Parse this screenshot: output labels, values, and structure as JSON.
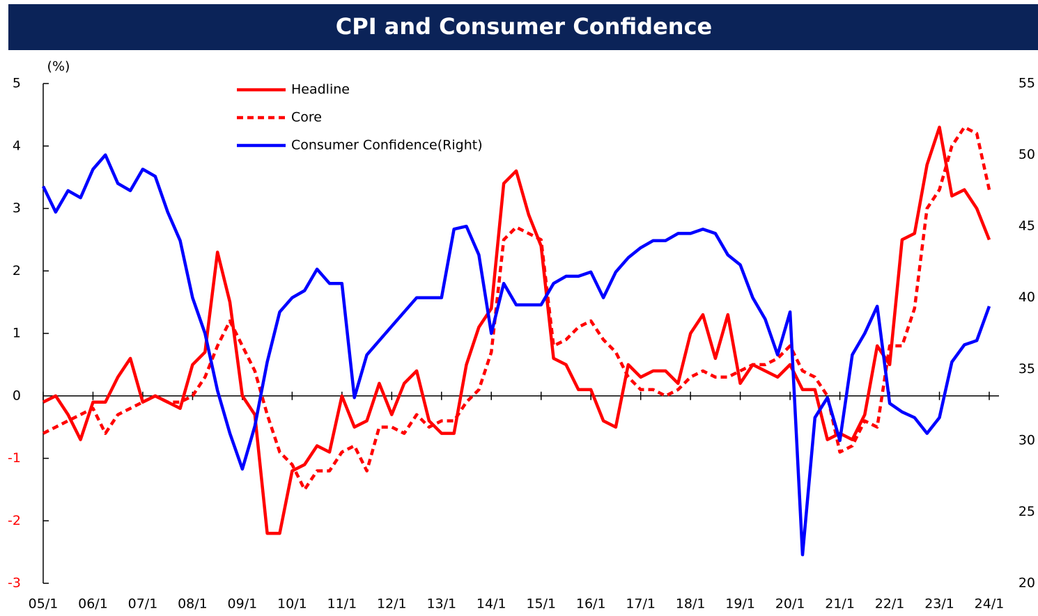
{
  "chart_data": {
    "type": "line",
    "title": "CPI and Consumer Confidence",
    "y_label": "(%)",
    "categories": [
      "05/1",
      null,
      null,
      null,
      "06/1",
      null,
      null,
      null,
      "07/1",
      null,
      null,
      null,
      "08/1",
      null,
      null,
      null,
      "09/1",
      null,
      null,
      null,
      "10/1",
      null,
      null,
      null,
      "11/1",
      null,
      null,
      null,
      "12/1",
      null,
      null,
      null,
      "13/1",
      null,
      null,
      null,
      "14/1",
      null,
      null,
      null,
      "15/1",
      null,
      null,
      null,
      "16/1",
      null,
      null,
      null,
      "17/1",
      null,
      null,
      null,
      "18/1",
      null,
      null,
      null,
      "19/1",
      null,
      null,
      null,
      "20/1",
      null,
      null,
      null,
      "21/1",
      null,
      null,
      null,
      "22/1",
      null,
      null,
      null,
      "23/1",
      null,
      null,
      null,
      "24/1"
    ],
    "series": [
      {
        "name": "Headline",
        "color": "#ff0000",
        "dash": false,
        "values": [
          -0.1,
          0.0,
          -0.3,
          -0.7,
          -0.1,
          -0.1,
          0.3,
          0.6,
          -0.1,
          0.0,
          -0.1,
          -0.2,
          0.5,
          0.7,
          2.3,
          1.5,
          0.0,
          -0.3,
          -2.2,
          -2.2,
          -1.2,
          -1.1,
          -0.8,
          -0.9,
          0.0,
          -0.5,
          -0.4,
          0.2,
          -0.3,
          0.2,
          0.4,
          -0.4,
          -0.6,
          -0.6,
          0.5,
          1.1,
          1.4,
          3.4,
          3.6,
          2.9,
          2.4,
          0.6,
          0.5,
          0.1,
          0.1,
          -0.4,
          -0.5,
          0.5,
          0.3,
          0.4,
          0.4,
          0.2,
          1.0,
          1.3,
          0.6,
          1.3,
          0.2,
          0.5,
          0.4,
          0.3,
          0.5,
          0.1,
          0.1,
          -0.7,
          -0.6,
          -0.7,
          -0.3,
          0.8,
          0.5,
          2.5,
          2.6,
          3.7,
          4.3,
          3.2,
          3.3,
          3.0,
          2.5
        ]
      },
      {
        "name": "Core",
        "color": "#ff0000",
        "dash": true,
        "values": [
          -0.6,
          -0.5,
          -0.4,
          -0.3,
          -0.2,
          -0.6,
          -0.3,
          -0.2,
          -0.1,
          0.0,
          -0.1,
          -0.1,
          0.0,
          0.3,
          0.8,
          1.2,
          0.8,
          0.4,
          -0.3,
          -0.9,
          -1.1,
          -1.5,
          -1.2,
          -1.2,
          -0.9,
          -0.8,
          -1.2,
          -0.5,
          -0.5,
          -0.6,
          -0.3,
          -0.5,
          -0.4,
          -0.4,
          -0.1,
          0.1,
          0.7,
          2.5,
          2.7,
          2.6,
          2.5,
          0.8,
          0.9,
          1.1,
          1.2,
          0.9,
          0.7,
          0.3,
          0.1,
          0.1,
          0.0,
          0.1,
          0.3,
          0.4,
          0.3,
          0.3,
          0.4,
          0.5,
          0.5,
          0.6,
          0.8,
          0.4,
          0.3,
          0.0,
          -0.9,
          -0.8,
          -0.4,
          -0.5,
          0.8,
          0.8,
          1.4,
          3.0,
          3.3,
          4.0,
          4.3,
          4.2,
          3.3
        ]
      },
      {
        "name": "Consumer Confidence(Right)",
        "color": "#0000ff",
        "dash": false,
        "axis": "y2",
        "values": [
          47.8,
          46,
          47.5,
          47,
          49,
          50,
          48,
          47.5,
          49,
          48.5,
          46,
          44,
          40,
          37.5,
          33.5,
          30.5,
          28,
          31,
          35.5,
          39,
          40,
          40.5,
          42,
          41,
          41,
          33,
          36,
          37,
          38,
          39,
          40,
          40,
          40,
          44.8,
          45,
          43,
          37.5,
          41,
          39.5,
          39.5,
          39.5,
          41,
          41.5,
          41.5,
          41.8,
          40,
          41.8,
          42.8,
          43.5,
          44,
          44,
          44.5,
          44.5,
          44.8,
          44.5,
          43,
          42.3,
          40,
          38.5,
          36,
          39,
          22,
          31.6,
          33,
          30,
          36,
          37.5,
          39.4,
          32.6,
          32,
          31.6,
          30.5,
          31.6,
          35.5,
          36.7,
          37,
          39.4
        ]
      }
    ],
    "ylim": [
      -3,
      5
    ],
    "yticks": [
      -3,
      -2,
      -1,
      0,
      1,
      2,
      3,
      4,
      5
    ],
    "y2lim": [
      20,
      55
    ],
    "y2ticks": [
      20,
      25,
      30,
      35,
      40,
      45,
      50,
      55
    ],
    "negative_tick_color": "#ff0000",
    "legend": "top-left"
  }
}
